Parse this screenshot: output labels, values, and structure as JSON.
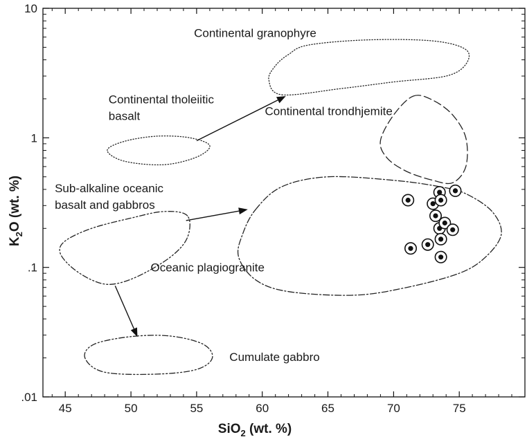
{
  "chart_data": {
    "type": "scatter",
    "title": "",
    "xlabel": {
      "main": "SiO",
      "sub": "2",
      "rest": " (wt. %)"
    },
    "ylabel": {
      "main": "K",
      "sub": "2",
      "rest": "O (wt. %)"
    },
    "xlim": [
      43.3,
      80
    ],
    "ylim": [
      0.01,
      10
    ],
    "yscale": "log",
    "grid": false,
    "x_ticks": [
      45,
      50,
      55,
      60,
      65,
      70,
      75
    ],
    "x_tick_labels": [
      "45",
      "50",
      "55",
      "60",
      "65",
      "70",
      "75"
    ],
    "y_ticks": [
      0.01,
      0.1,
      1,
      10
    ],
    "y_tick_labels": [
      ".01",
      ".1",
      "1",
      "10"
    ],
    "points": [
      {
        "x": 71.1,
        "y": 0.33
      },
      {
        "x": 71.3,
        "y": 0.14
      },
      {
        "x": 72.6,
        "y": 0.15
      },
      {
        "x": 73.0,
        "y": 0.31
      },
      {
        "x": 73.2,
        "y": 0.25
      },
      {
        "x": 73.5,
        "y": 0.38
      },
      {
        "x": 73.5,
        "y": 0.2
      },
      {
        "x": 73.6,
        "y": 0.33
      },
      {
        "x": 73.6,
        "y": 0.165
      },
      {
        "x": 73.6,
        "y": 0.12
      },
      {
        "x": 73.9,
        "y": 0.22
      },
      {
        "x": 74.5,
        "y": 0.195
      },
      {
        "x": 74.7,
        "y": 0.39
      }
    ],
    "fields": [
      {
        "label": "Continental granophyre",
        "style": "dotted",
        "label_pos": [
          54.8,
          6.0
        ],
        "outline": [
          [
            61.5,
            2.15
          ],
          [
            66,
            2.4
          ],
          [
            70,
            2.7
          ],
          [
            74,
            3.0
          ],
          [
            75.5,
            3.7
          ],
          [
            75.5,
            4.8
          ],
          [
            73,
            5.6
          ],
          [
            68,
            5.7
          ],
          [
            63.5,
            5.2
          ],
          [
            62,
            4.4
          ],
          [
            61,
            3.6
          ],
          [
            60.5,
            2.8
          ],
          [
            61.5,
            2.15
          ]
        ]
      },
      {
        "label": [
          "Continental tholeiitic",
          "basalt"
        ],
        "style": "dotted",
        "label_pos": [
          48.3,
          1.85
        ],
        "outline": [
          [
            48.2,
            0.8
          ],
          [
            49.5,
            0.94
          ],
          [
            52,
            1.03
          ],
          [
            54.5,
            1.0
          ],
          [
            56,
            0.87
          ],
          [
            55,
            0.71
          ],
          [
            52.5,
            0.62
          ],
          [
            49.5,
            0.66
          ],
          [
            48.2,
            0.8
          ]
        ]
      },
      {
        "label": "Continental trondhjemite",
        "style": "dashed",
        "label_pos": [
          60.2,
          1.5
        ],
        "outline": [
          [
            71.5,
            2.1
          ],
          [
            73,
            1.95
          ],
          [
            74.5,
            1.5
          ],
          [
            75.5,
            1.0
          ],
          [
            75.5,
            0.6
          ],
          [
            74.5,
            0.45
          ],
          [
            73,
            0.47
          ],
          [
            71,
            0.55
          ],
          [
            69.5,
            0.7
          ],
          [
            69,
            0.95
          ],
          [
            70,
            1.5
          ],
          [
            71.5,
            2.1
          ]
        ]
      },
      {
        "label": "Oceanic plagiogranite",
        "style": "dashdot",
        "label_pos": [
          51.5,
          0.093
        ],
        "outline": [
          [
            59.5,
            0.28
          ],
          [
            61.5,
            0.42
          ],
          [
            65,
            0.5
          ],
          [
            70,
            0.47
          ],
          [
            73.5,
            0.42
          ],
          [
            75.5,
            0.37
          ],
          [
            77.5,
            0.27
          ],
          [
            78.2,
            0.18
          ],
          [
            77,
            0.12
          ],
          [
            75,
            0.09
          ],
          [
            71,
            0.07
          ],
          [
            67,
            0.061
          ],
          [
            62,
            0.065
          ],
          [
            59.5,
            0.08
          ],
          [
            58.2,
            0.12
          ],
          [
            58.5,
            0.18
          ],
          [
            59.5,
            0.28
          ]
        ]
      },
      {
        "label": [
          "Sub-alkaline oceanic",
          "basalt and gabbros"
        ],
        "style": "dashdotdot",
        "label_pos": [
          44.2,
          0.38
        ],
        "outline": [
          [
            54.3,
            0.25
          ],
          [
            52.5,
            0.27
          ],
          [
            50,
            0.24
          ],
          [
            47,
            0.2
          ],
          [
            45,
            0.16
          ],
          [
            44.6,
            0.13
          ],
          [
            45.5,
            0.1
          ],
          [
            47,
            0.08
          ],
          [
            48.5,
            0.074
          ],
          [
            50.5,
            0.085
          ],
          [
            53,
            0.12
          ],
          [
            54.3,
            0.17
          ],
          [
            54.3,
            0.25
          ]
        ]
      },
      {
        "label": "Cumulate gabbro",
        "style": "dashdotdot",
        "label_pos": [
          57.5,
          0.019
        ],
        "outline": [
          [
            46.5,
            0.02
          ],
          [
            47.2,
            0.0255
          ],
          [
            50,
            0.0292
          ],
          [
            53,
            0.0295
          ],
          [
            55.5,
            0.0255
          ],
          [
            56.2,
            0.02
          ],
          [
            55,
            0.0163
          ],
          [
            52,
            0.015
          ],
          [
            48,
            0.0155
          ],
          [
            46.5,
            0.02
          ]
        ]
      }
    ],
    "arrows": [
      {
        "from": [
          55,
          0.95
        ],
        "to": [
          61.8,
          2.1
        ]
      },
      {
        "from": [
          54.2,
          0.23
        ],
        "to": [
          58.9,
          0.28
        ]
      },
      {
        "from": [
          48.8,
          0.072
        ],
        "to": [
          50.5,
          0.029
        ]
      }
    ]
  }
}
